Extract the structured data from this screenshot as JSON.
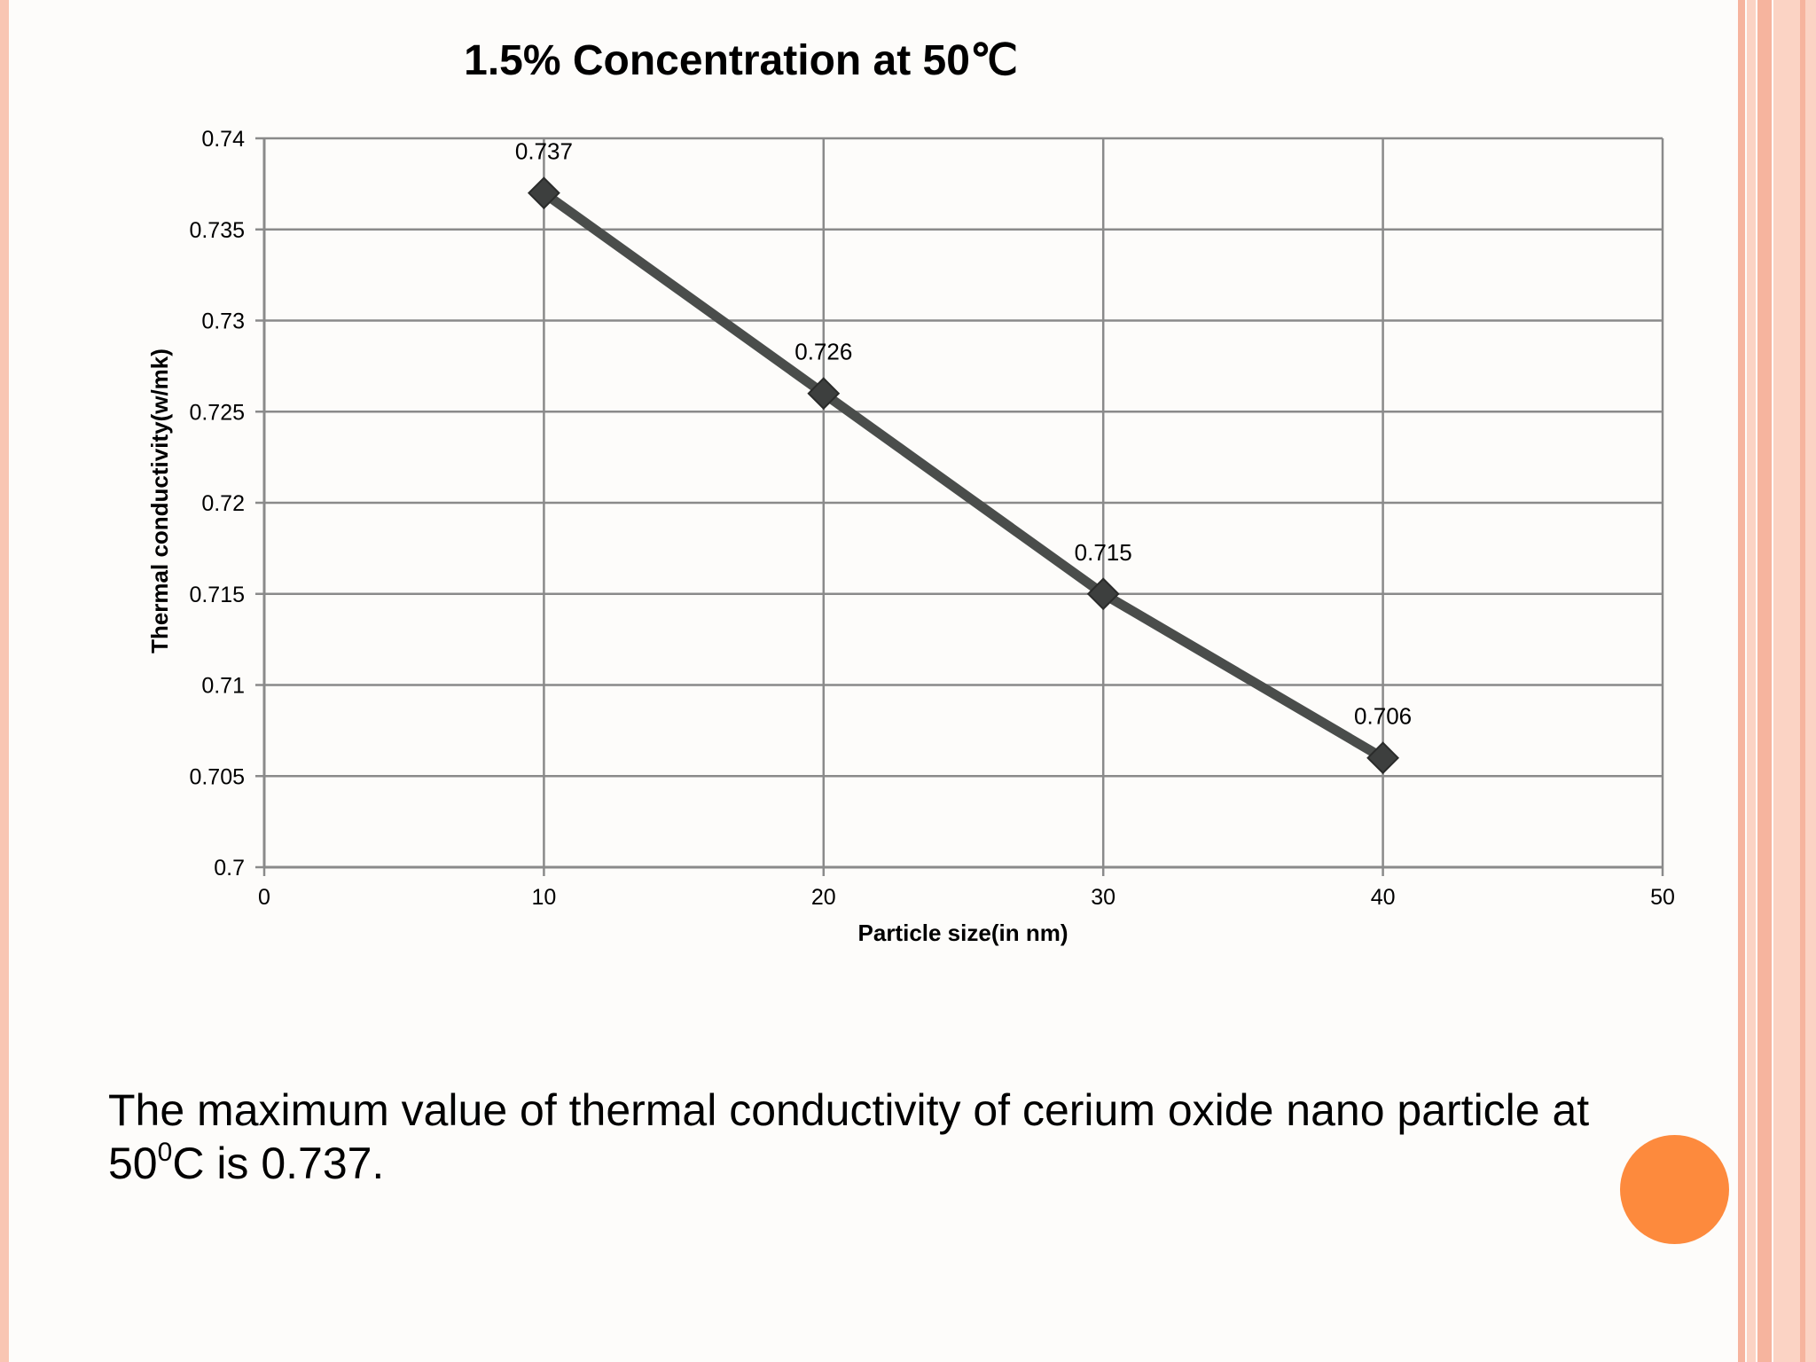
{
  "colors": {
    "background": "#fdfcfa",
    "accent_stripe": "#f6b49e",
    "accent_stripe_light": "#fbd3c4",
    "accent_circle": "#fd8a3d",
    "series_line": "#4a4d4b",
    "gridline": "#8a8a8a"
  },
  "chart_data": {
    "type": "line",
    "title": "1.5% Concentration at 50℃",
    "xlabel": "Particle size(in nm)",
    "ylabel": "Thermal conductivity(w/mk)",
    "xlim": [
      0,
      50
    ],
    "ylim": [
      0.7,
      0.74
    ],
    "x_ticks": [
      "0",
      "10",
      "20",
      "30",
      "40",
      "50"
    ],
    "y_ticks": [
      "0.7",
      "0.705",
      "0.71",
      "0.715",
      "0.72",
      "0.725",
      "0.73",
      "0.735",
      "0.74"
    ],
    "grid": true,
    "marker": "diamond",
    "series": [
      {
        "x": [
          10,
          20,
          30,
          40
        ],
        "values": [
          0.737,
          0.726,
          0.715,
          0.706
        ],
        "data_labels": [
          "0.737",
          "0.726",
          "0.715",
          "0.706"
        ]
      }
    ]
  },
  "caption": {
    "line1": "The maximum value of thermal conductivity of cerium oxide nano particle at",
    "line2_prefix": "50",
    "line2_sup": "0",
    "line2_suffix": "C is 0.737."
  }
}
